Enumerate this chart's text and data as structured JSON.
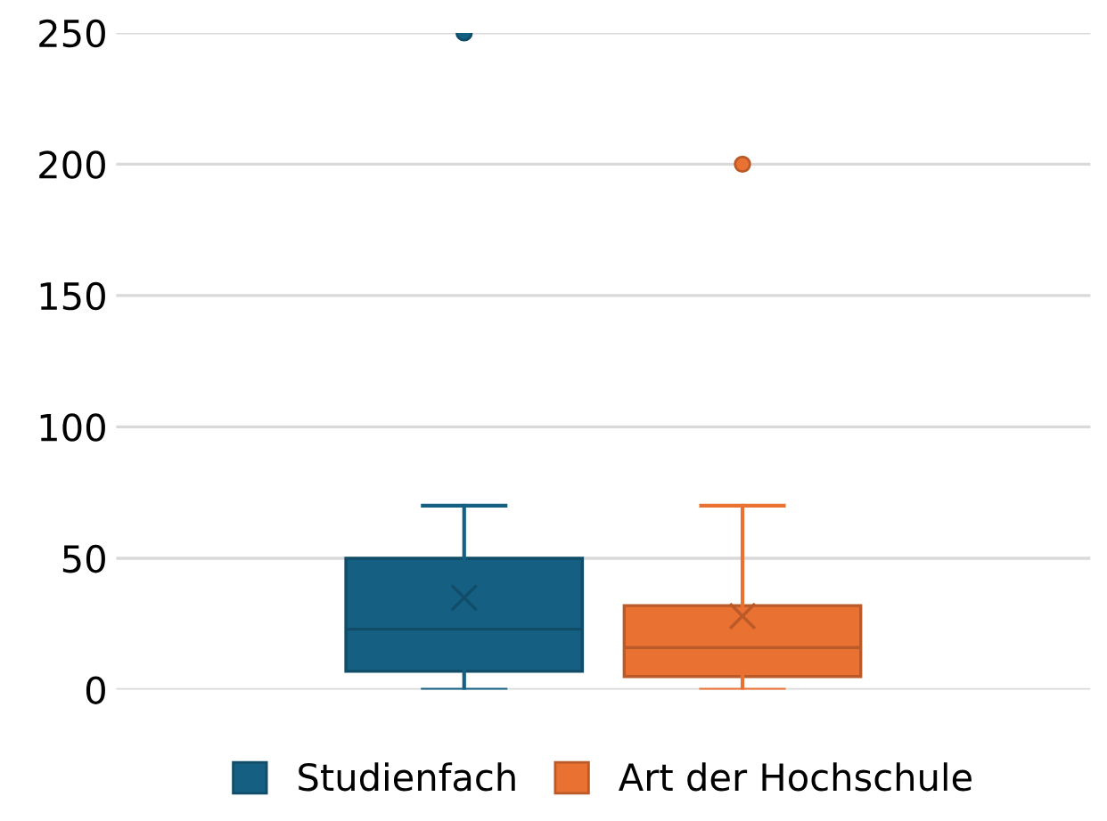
{
  "chart_data": {
    "type": "box",
    "categories": [
      null
    ],
    "series": [
      {
        "name": "Studienfach",
        "color": "#156082",
        "boxes": [
          {
            "low": 0,
            "q1": 7,
            "median": 23,
            "q3": 50,
            "high": 70,
            "mean": 35,
            "outliers": [
              250
            ]
          }
        ]
      },
      {
        "name": "Art der Hochschule",
        "color": "#e97132",
        "boxes": [
          {
            "low": 0,
            "q1": 5,
            "median": 16,
            "q3": 32,
            "high": 70,
            "mean": 28,
            "outliers": [
              200
            ]
          }
        ]
      }
    ],
    "ylim": [
      0,
      250
    ],
    "yticks": [
      0,
      50,
      100,
      150,
      200,
      250
    ],
    "grid": "y",
    "legend": "bottom",
    "tick_labels": "y"
  }
}
